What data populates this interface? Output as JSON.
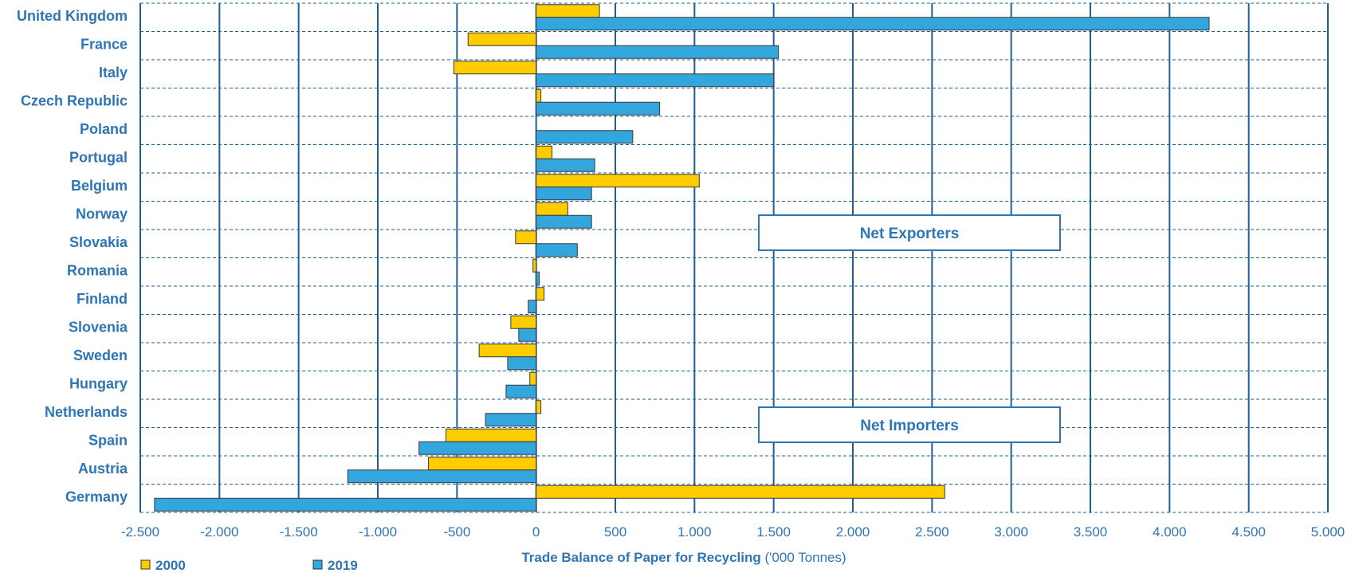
{
  "chart_data": {
    "type": "bar",
    "orientation": "horizontal",
    "categories": [
      "United Kingdom",
      "France",
      "Italy",
      "Czech Republic",
      "Poland",
      "Portugal",
      "Belgium",
      "Norway",
      "Slovakia",
      "Romania",
      "Finland",
      "Slovenia",
      "Sweden",
      "Hungary",
      "Netherlands",
      "Spain",
      "Austria",
      "Germany"
    ],
    "series": [
      {
        "name": "2000",
        "color": "#ffcc00",
        "values": [
          400,
          -430,
          -520,
          30,
          0,
          100,
          1030,
          200,
          -130,
          -20,
          50,
          -160,
          -360,
          -40,
          30,
          -570,
          -680,
          2580
        ]
      },
      {
        "name": "2019",
        "color": "#33a6dd",
        "values": [
          4250,
          1530,
          1500,
          780,
          610,
          370,
          350,
          350,
          260,
          20,
          -50,
          -110,
          -180,
          -190,
          -320,
          -740,
          -1190,
          -2410
        ]
      }
    ],
    "xlabel_bold": "Trade Balance of Paper for Recycling",
    "xlabel_rest": " ('000 Tonnes)",
    "xlim": [
      -2500,
      5000
    ],
    "xticks": [
      -2500,
      -2000,
      -1500,
      -1000,
      -500,
      0,
      500,
      1000,
      1500,
      2000,
      2500,
      3000,
      3500,
      4000,
      4500,
      5000
    ],
    "xtick_labels": [
      "-2.500",
      "-2.000",
      "-1.500",
      "-1.000",
      "-500",
      "0",
      "500",
      "1.000",
      "1.500",
      "2.000",
      "2.500",
      "3.000",
      "3.500",
      "4.000",
      "4.500",
      "5.000"
    ],
    "grid": {
      "vertical": "solid",
      "horizontal": "dashed"
    },
    "legend_position": "bottom-left",
    "annotations": [
      "Net Exporters",
      "Net Importers"
    ],
    "colors": {
      "text": "#2e75b6",
      "grid": "#1f5f96"
    }
  }
}
